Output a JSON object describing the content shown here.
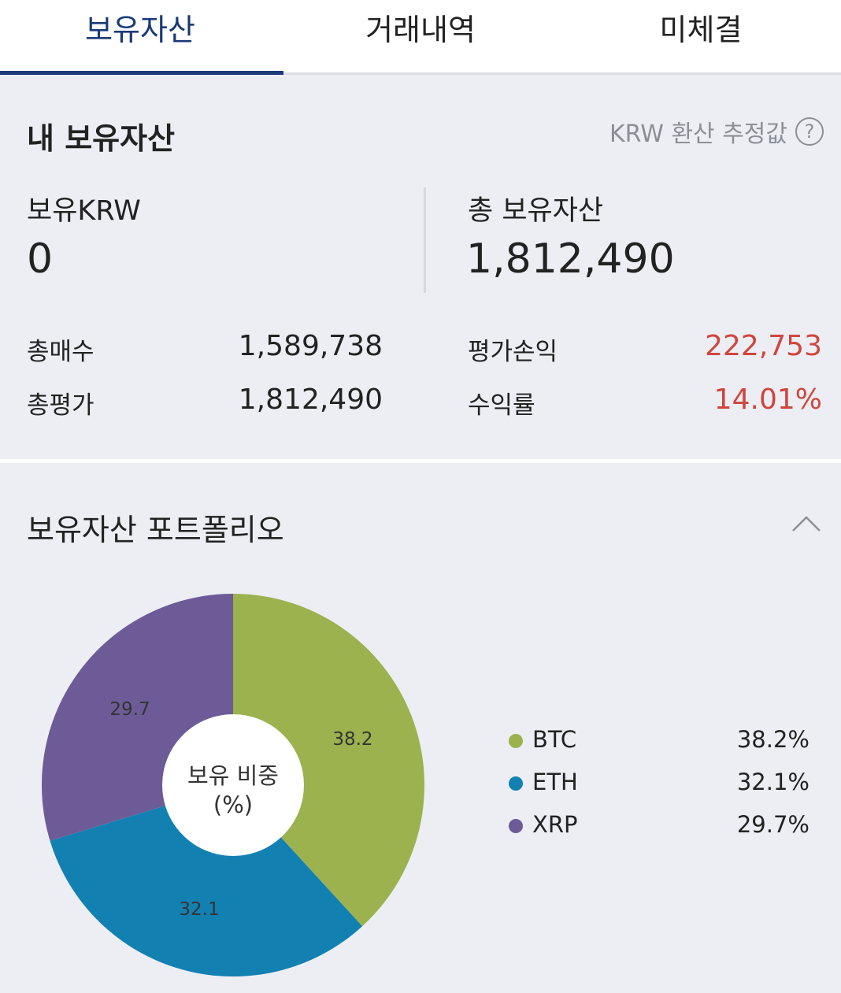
{
  "tabs": [
    {
      "label": "보유자산",
      "active": true
    },
    {
      "label": "거래내역",
      "active": false
    },
    {
      "label": "미체결",
      "active": false
    }
  ],
  "summary": {
    "title": "내 보유자산",
    "krw_note": "KRW 환산 추정값",
    "help_icon": "question-circle-icon",
    "krw_label": "보유KRW",
    "krw_value": "0",
    "total_label": "총 보유자산",
    "total_value": "1,812,490",
    "rows": [
      {
        "label": "총매수",
        "value": "1,589,738"
      },
      {
        "label": "총평가",
        "value": "1,812,490"
      },
      {
        "label": "평가손익",
        "value": "222,753"
      },
      {
        "label": "수익률",
        "value": "14.01%"
      }
    ],
    "profit_color": "#d0453d"
  },
  "portfolio": {
    "title": "보유자산 포트폴리오",
    "collapse_icon": "chevron-up-icon",
    "center_label_1": "보유 비중",
    "center_label_2": "(%)"
  },
  "chart_data": {
    "type": "pie",
    "donut": true,
    "categories": [
      "BTC",
      "ETH",
      "XRP"
    ],
    "values": [
      38.2,
      32.1,
      29.7
    ],
    "slice_labels": [
      "38.2",
      "32.1",
      "29.7"
    ],
    "legend_values": [
      "38.2%",
      "32.1%",
      "29.7%"
    ],
    "colors": [
      "#9bb24e",
      "#1380b2",
      "#6d5b98"
    ],
    "legend_placement": "right"
  }
}
